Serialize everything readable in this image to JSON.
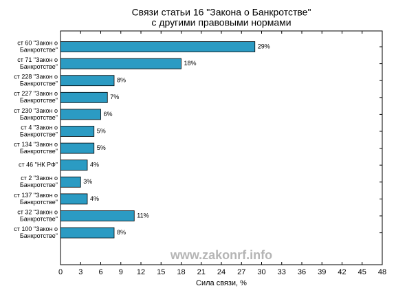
{
  "chart_data": {
    "type": "barh",
    "title": [
      "Связи статьи 16 \"Закона о Банкротстве\"",
      "с другими правовыми нормами"
    ],
    "categories": [
      [
        "ст 60 \"Закон о",
        "Банкротстве\""
      ],
      [
        "ст 71 \"Закон о",
        "Банкротстве\""
      ],
      [
        "ст 228 \"Закон о",
        "Банкротстве\""
      ],
      [
        "ст 227 \"Закон о",
        "Банкротстве\""
      ],
      [
        "ст 230 \"Закон о",
        "Банкротстве\""
      ],
      [
        "ст 4 \"Закон о",
        "Банкротстве\""
      ],
      [
        "ст 134 \"Закон о",
        "Банкротстве\""
      ],
      [
        "ст 46 \"НК РФ\""
      ],
      [
        "ст 2 \"Закон о",
        "Банкротстве\""
      ],
      [
        "ст 137 \"Закон о",
        "Банкротстве\""
      ],
      [
        "ст 32 \"Закон о",
        "Банкротстве\""
      ],
      [
        "ст 100 \"Закон о",
        "Банкротстве\""
      ]
    ],
    "values": [
      29,
      18,
      8,
      7,
      6,
      5,
      5,
      4,
      3,
      4,
      11,
      8
    ],
    "value_labels": [
      "29%",
      "18%",
      "8%",
      "7%",
      "6%",
      "5%",
      "5%",
      "4%",
      "3%",
      "4%",
      "11%",
      "8%"
    ],
    "color": "#2b9bc3",
    "xlabel": "Сила связи, %",
    "xlim": [
      0,
      48
    ],
    "xticks": [
      0,
      3,
      6,
      9,
      12,
      15,
      18,
      21,
      24,
      27,
      30,
      33,
      36,
      39,
      42,
      45,
      48
    ],
    "annotation": "www.zakonrf.info"
  }
}
